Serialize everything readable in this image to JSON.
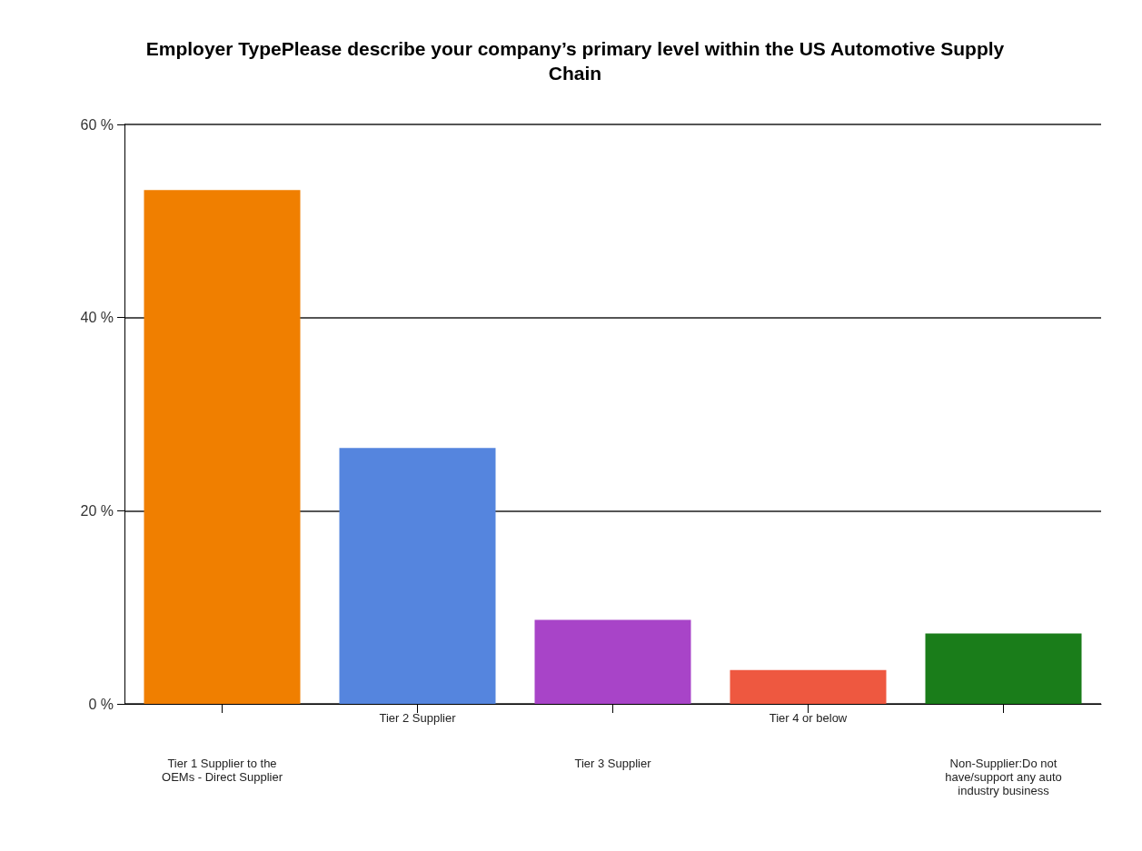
{
  "chart_data": {
    "type": "bar",
    "title": "Employer TypePlease describe your company’s primary level within the US Automotive Supply Chain",
    "categories": [
      "Tier 1 Supplier to the OEMs - Direct Supplier",
      "Tier 2 Supplier",
      "Tier 3 Supplier",
      "Tier 4 or below",
      "Non-Supplier:Do not have/support any auto industry business"
    ],
    "values": [
      53.2,
      26.5,
      8.7,
      3.5,
      7.3
    ],
    "colors": [
      "#f07f00",
      "#5585de",
      "#a844c8",
      "#ee5840",
      "#1a7d1a"
    ],
    "ylim": [
      0,
      60
    ],
    "yticks": [
      {
        "value": 0,
        "label": "0 %"
      },
      {
        "value": 20,
        "label": "20 %"
      },
      {
        "value": 40,
        "label": "40 %"
      },
      {
        "value": 60,
        "label": "60 %"
      }
    ],
    "grid": "y"
  }
}
